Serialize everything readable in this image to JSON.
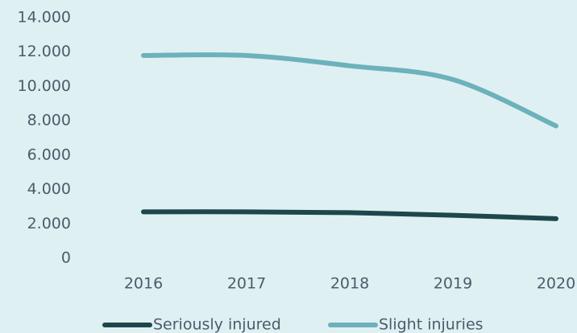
{
  "chart_data": {
    "type": "line",
    "categories": [
      "2016",
      "2017",
      "2018",
      "2019",
      "2020"
    ],
    "series": [
      {
        "name": "Seriously injured",
        "color": "#1d474c",
        "values": [
          2700,
          2700,
          2650,
          2500,
          2300
        ]
      },
      {
        "name": "Slight injuries",
        "color": "#6db1bb",
        "values": [
          11800,
          11800,
          11200,
          10400,
          7700
        ]
      }
    ],
    "ylim": [
      0,
      14000
    ],
    "yticks": [
      0,
      {
        "value": 2000,
        "label": "2.000"
      },
      {
        "value": 4000,
        "label": "4.000"
      },
      {
        "value": 6000,
        "label": "6.000"
      },
      {
        "value": 8000,
        "label": "8.000"
      },
      {
        "value": 10000,
        "label": "10.000"
      },
      {
        "value": 12000,
        "label": "12.000"
      },
      {
        "value": 14000,
        "label": "14.000"
      }
    ],
    "legend": "bottom",
    "smooth": true
  }
}
